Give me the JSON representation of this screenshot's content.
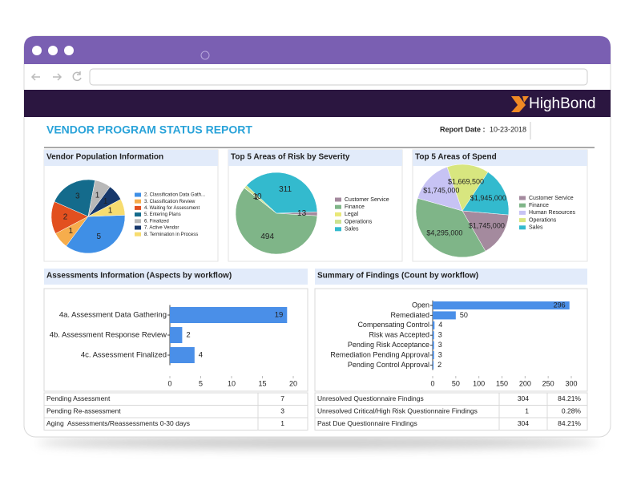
{
  "header": {
    "logo": "HighBond"
  },
  "report": {
    "title": "VENDOR PROGRAM STATUS REPORT",
    "date_label": "Report Date :",
    "date": "10-23-2018"
  },
  "chart_data": [
    {
      "type": "pie",
      "title": "Vendor Population Information",
      "categories": [
        "2. Classification Data Gath...",
        "3. Classification Review",
        "4. Waiting for Assessment",
        "5. Entering Plans",
        "6. Finalized",
        "7. Active Vendor",
        "8. Termination in Process"
      ],
      "values": [
        5,
        1,
        2,
        3,
        1,
        1,
        1
      ],
      "colors": [
        "#3f8fe6",
        "#f6ad4c",
        "#e2501f",
        "#146b8c",
        "#b8b8b8",
        "#17386b",
        "#f7dc6f"
      ]
    },
    {
      "type": "pie",
      "title": "Top 5 Areas of Risk by Severity",
      "categories": [
        "Customer Service",
        "Finance",
        "Legal",
        "Operations",
        "Sales"
      ],
      "values": [
        13,
        494,
        1,
        10,
        311
      ],
      "colors": [
        "#a48a9e",
        "#7fb588",
        "#e9e878",
        "#cde28f",
        "#33bace"
      ]
    },
    {
      "type": "pie",
      "title": "Top 5 Areas of Spend",
      "categories": [
        "Customer Service",
        "Finance",
        "Human Resources",
        "Operations",
        "Sales"
      ],
      "values": [
        1745000,
        4295000,
        1745000,
        1669500,
        1945000
      ],
      "value_labels": [
        "$1,745,000",
        "$4,295,000",
        "$1,745,000",
        "$1,669,500",
        "$1,945,000"
      ],
      "colors": [
        "#a48a9e",
        "#7fb588",
        "#c7c3f4",
        "#d8e67f",
        "#33bace"
      ]
    },
    {
      "type": "bar",
      "orientation": "horizontal",
      "title": "Assessments Information (Aspects by workflow)",
      "categories": [
        "4a. Assessment Data Gathering",
        "4b. Assessment Response Review",
        "4c. Assessment Finalized"
      ],
      "values": [
        19,
        2,
        4
      ],
      "color": "#4a8fe8",
      "xlim": [
        0,
        20
      ],
      "xticks": [
        0,
        5,
        10,
        15,
        20
      ]
    },
    {
      "type": "bar",
      "orientation": "horizontal",
      "title": "Summary of Findings (Count by workflow)",
      "categories": [
        "Open",
        "Remediated",
        "Compensating Control",
        "Risk was Accepted",
        "Pending Risk Acceptance",
        "Remediation Pending Approval",
        "Pending Control Approval"
      ],
      "values": [
        296,
        50,
        4,
        3,
        3,
        3,
        2
      ],
      "color": "#4a8fe8",
      "xlim": [
        0,
        300
      ],
      "xticks": [
        0,
        50,
        100,
        150,
        200,
        250,
        300
      ]
    }
  ],
  "tables": [
    {
      "rows": [
        [
          "Pending Assessment",
          "7"
        ],
        [
          "Pending Re-assessment",
          "3"
        ],
        [
          "Aging  Assessments/Reassessments 0-30 days",
          "1"
        ]
      ]
    },
    {
      "rows": [
        [
          "Unresolved Questionnaire Findings",
          "304",
          "84.21%"
        ],
        [
          "Unresolved Critical/High Risk Questionnaire Findings",
          "1",
          "0.28%"
        ],
        [
          "Past Due Questionnaire Findings",
          "304",
          "84.21%"
        ]
      ]
    }
  ]
}
